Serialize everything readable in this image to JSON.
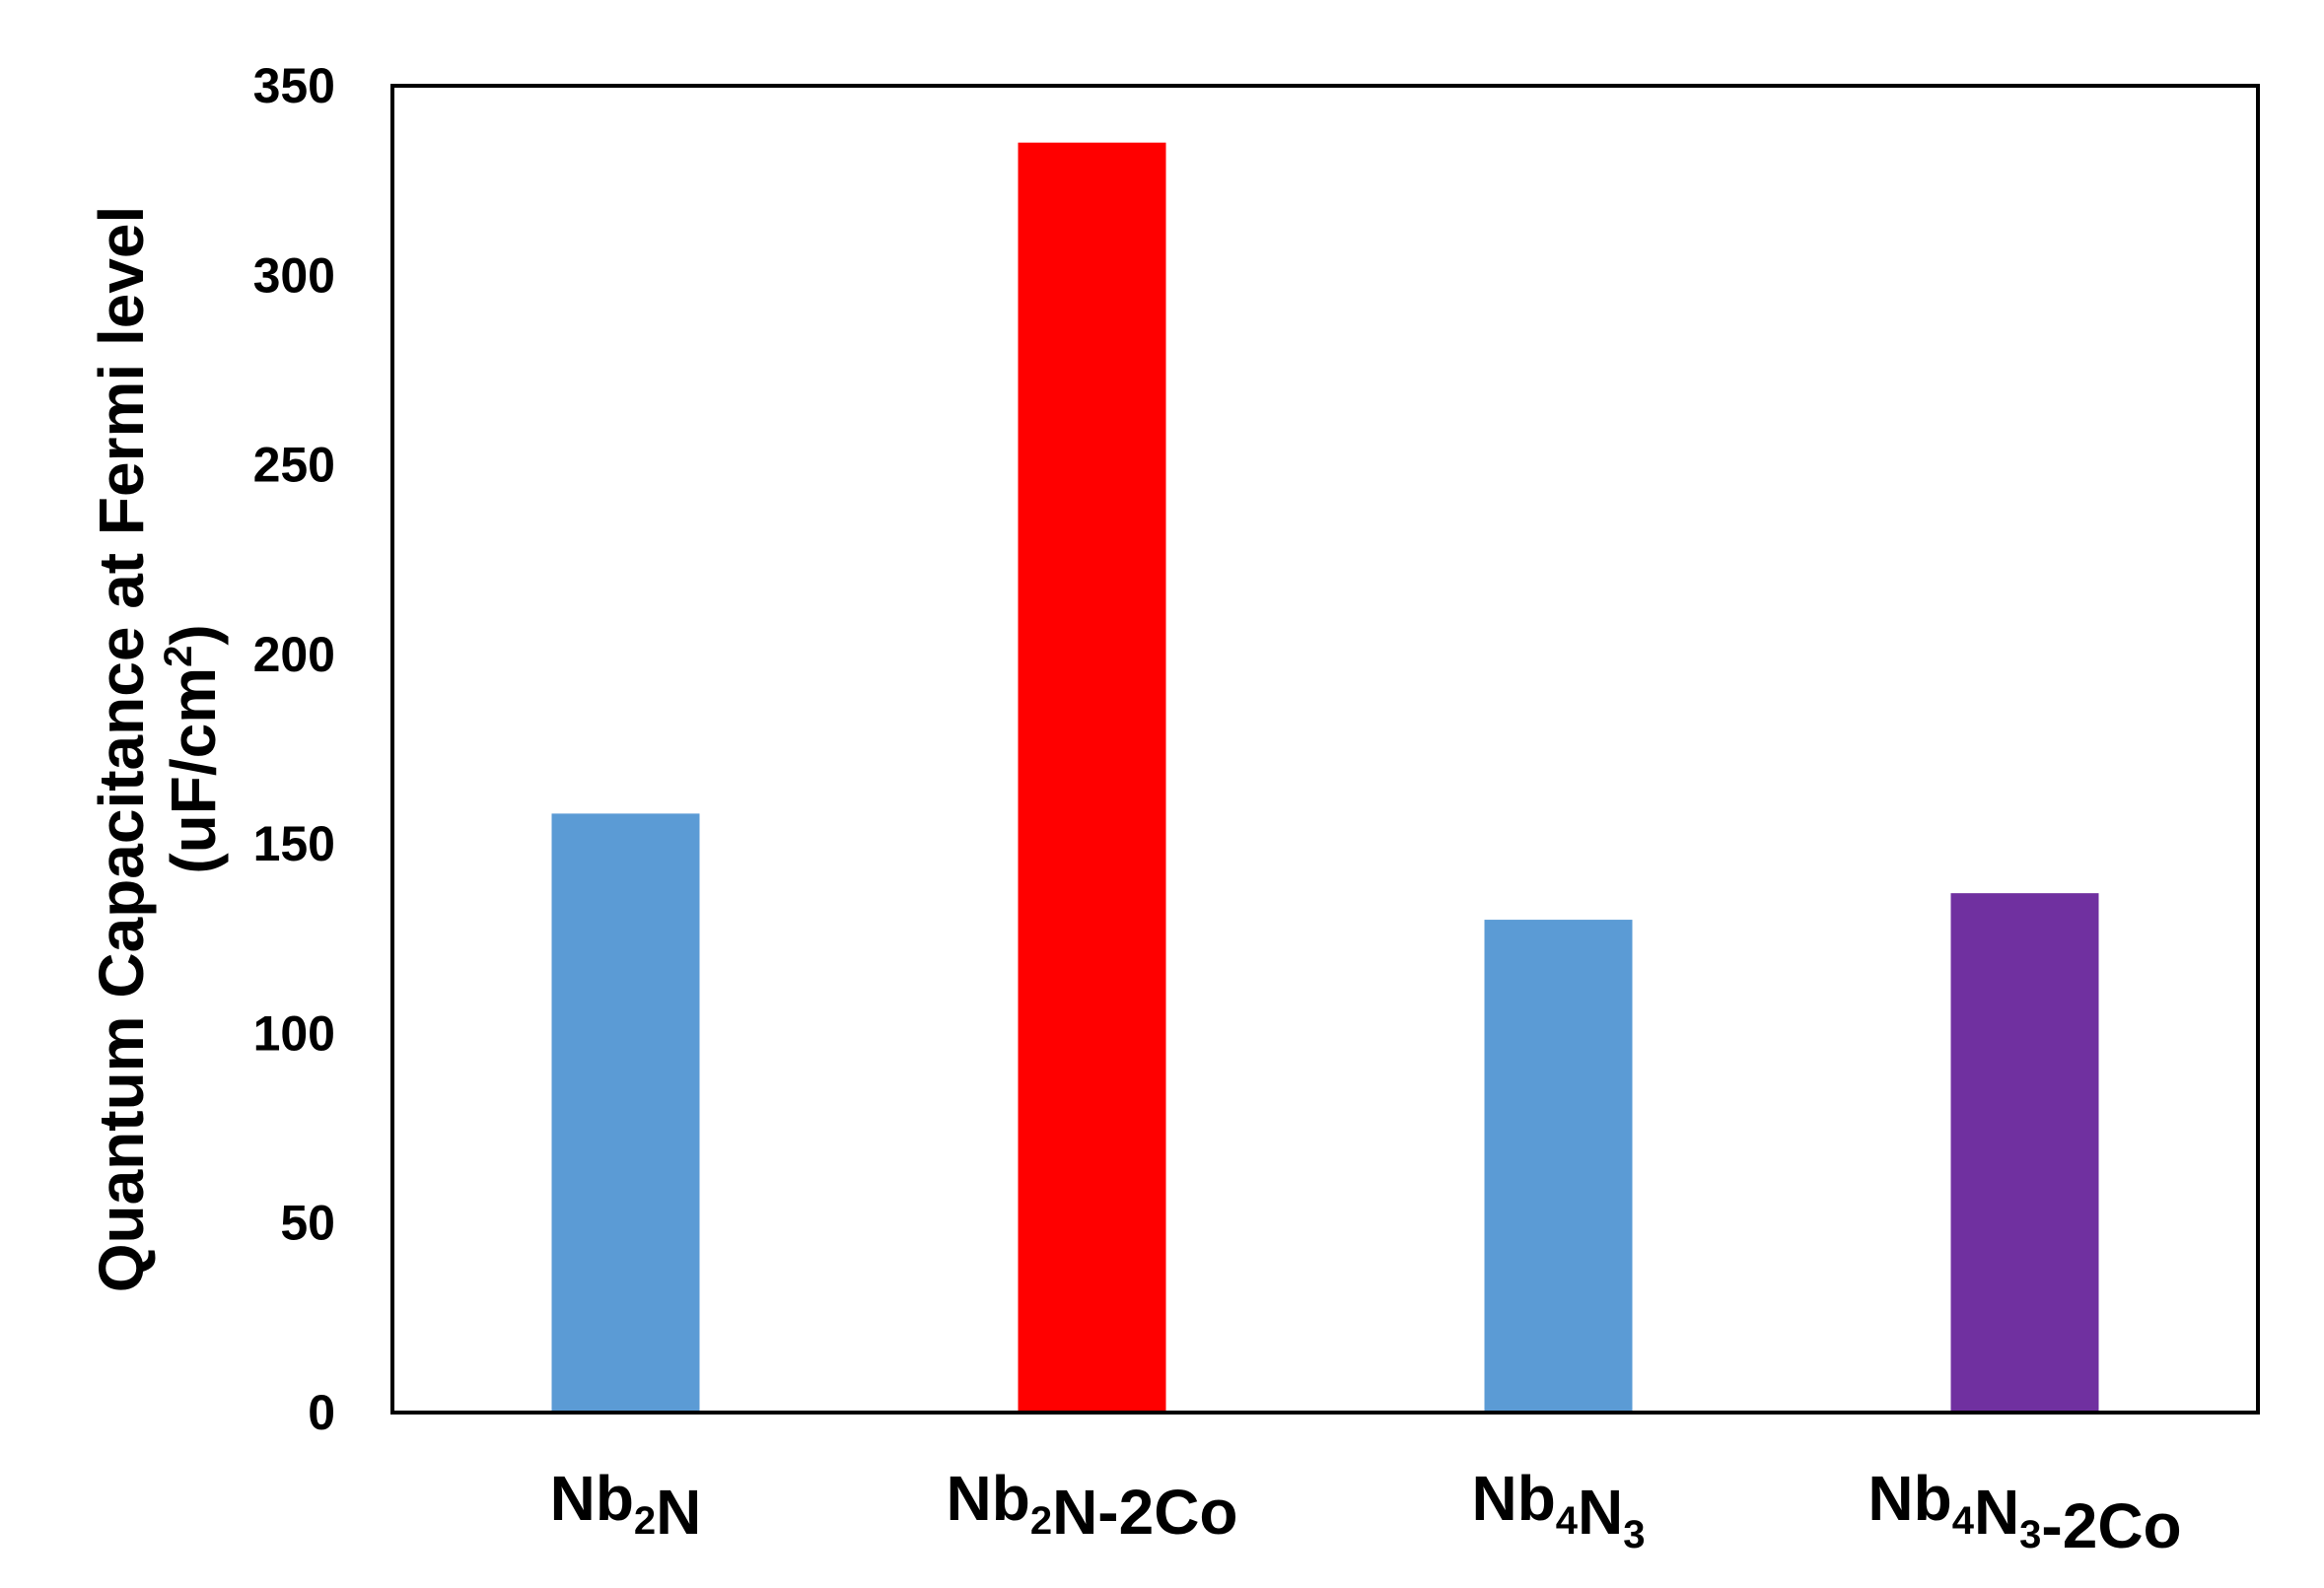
{
  "chart_data": {
    "type": "bar",
    "categories": [
      {
        "base": "Nb",
        "sub1": "2",
        "mid": "N",
        "sub2": "",
        "suffix": ""
      },
      {
        "base": "Nb",
        "sub1": "2",
        "mid": "N",
        "sub2": "",
        "suffix": "-2Co"
      },
      {
        "base": "Nb",
        "sub1": "4",
        "mid": "N",
        "sub2": "3",
        "suffix": ""
      },
      {
        "base": "Nb",
        "sub1": "4",
        "mid": "N",
        "sub2": "3",
        "suffix": "-2Co"
      }
    ],
    "values": [
      158,
      335,
      130,
      137
    ],
    "colors": [
      "#5b9bd5",
      "#ff0000",
      "#5b9bd5",
      "#7030a0"
    ],
    "ylabel_line1": "Quantum Capacitance at Fermi level",
    "ylabel_line2_pre": "(uF/cm",
    "ylabel_line2_sup": "2",
    "ylabel_line2_post": ")",
    "ylim": [
      0,
      350
    ],
    "yticks": [
      0,
      50,
      100,
      150,
      200,
      250,
      300,
      350
    ],
    "grid": false,
    "legend": "none"
  }
}
